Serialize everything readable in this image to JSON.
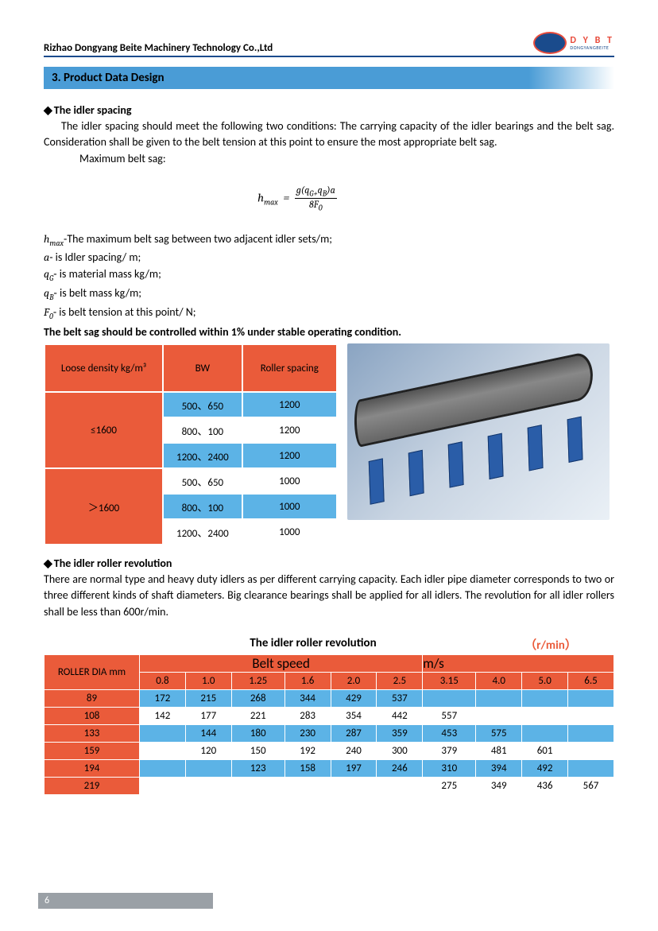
{
  "header": {
    "company": "Rizhao Dongyang Beite Machinery Technology Co.,Ltd",
    "logo_letters": "D Y B T",
    "logo_sub": "DONGYANGBEITE"
  },
  "section_title": "3. Product Data Design",
  "spacing": {
    "heading": "The idler spacing",
    "para": "The idler spacing should meet the following two conditions: The carrying capacity of the idler bearings and the belt sag. Consideration shall be given to the belt tension at this point to ensure the most appropriate belt sag.",
    "max_label": "Maximum belt sag:",
    "formula_lhs": "h",
    "formula_lhs_sub": "max",
    "formula_num": "g(q",
    "formula_num2": "G+",
    "formula_num3": "q",
    "formula_num4": "B",
    "formula_num5": ")a",
    "formula_den": "8F",
    "formula_den_sub": "0",
    "vars": [
      {
        "sym": "h",
        "sub": "max",
        "desc": "-The maximum belt sag between two adjacent idler sets/m;"
      },
      {
        "sym": "a",
        "sub": "",
        "desc": "- is Idler spacing/ m;"
      },
      {
        "sym": "q",
        "sub": "G",
        "desc": "- is material mass kg/m;"
      },
      {
        "sym": "q",
        "sub": "B",
        "desc": "- is belt mass kg/m;"
      },
      {
        "sym": "F",
        "sub": "0",
        "desc": "- is belt tension at this point/ N;"
      }
    ],
    "bold_line": "The belt sag should be controlled within 1% under stable operating condition."
  },
  "spacing_table": {
    "headers": [
      "Loose density   kg/m³",
      "BW",
      "Roller spacing"
    ],
    "groups": [
      {
        "label": "≤1600",
        "rows": [
          {
            "bw": "500、650",
            "rs": "1200",
            "stripe": "blue"
          },
          {
            "bw": "800、100",
            "rs": "1200",
            "stripe": "white"
          },
          {
            "bw": "1200、2400",
            "rs": "1200",
            "stripe": "blue"
          }
        ]
      },
      {
        "label": "＞1600",
        "rows": [
          {
            "bw": "500、650",
            "rs": "1000",
            "stripe": "white"
          },
          {
            "bw": "800、100",
            "rs": "1000",
            "stripe": "blue"
          },
          {
            "bw": "1200、2400",
            "rs": "1000",
            "stripe": "white"
          }
        ]
      }
    ]
  },
  "revolution": {
    "heading": "The idler roller revolution",
    "para": "There are normal type and heavy duty idlers as per different carrying capacity. Each idler pipe diameter corresponds to two or three different kinds of shaft diameters. Big clearance bearings shall be applied for all idlers. The revolution for all idler rollers shall be less than 600r/min.",
    "title": "The idler roller revolution",
    "unit": "（r/min）",
    "belt_speed_label": "Belt speed",
    "belt_speed_unit": "m/s",
    "col0": "ROLLER DIA mm",
    "speeds": [
      "0.8",
      "1.0",
      "1.25",
      "1.6",
      "2.0",
      "2.5",
      "3.15",
      "4.0",
      "5.0",
      "6.5"
    ],
    "rows": [
      {
        "dia": "89",
        "stripe": "blue",
        "vals": [
          "172",
          "215",
          "268",
          "344",
          "429",
          "537",
          "",
          "",
          "",
          ""
        ]
      },
      {
        "dia": "108",
        "stripe": "white",
        "vals": [
          "142",
          "177",
          "221",
          "283",
          "354",
          "442",
          "557",
          "",
          "",
          ""
        ]
      },
      {
        "dia": "133",
        "stripe": "blue",
        "vals": [
          "",
          "144",
          "180",
          "230",
          "287",
          "359",
          "453",
          "575",
          "",
          ""
        ]
      },
      {
        "dia": "159",
        "stripe": "white",
        "vals": [
          "",
          "120",
          "150",
          "192",
          "240",
          "300",
          "379",
          "481",
          "601",
          ""
        ]
      },
      {
        "dia": "194",
        "stripe": "blue",
        "vals": [
          "",
          "",
          "123",
          "158",
          "197",
          "246",
          "310",
          "394",
          "492",
          ""
        ]
      },
      {
        "dia": "219",
        "stripe": "white",
        "vals": [
          "",
          "",
          "",
          "",
          "",
          "",
          "275",
          "349",
          "436",
          "567"
        ]
      }
    ]
  },
  "page_number": "6",
  "colors": {
    "orange": "#ea5b3a",
    "blue": "#5cb3e6",
    "banner": "#4a9cd6",
    "header_rule": "#1a4b8c"
  }
}
